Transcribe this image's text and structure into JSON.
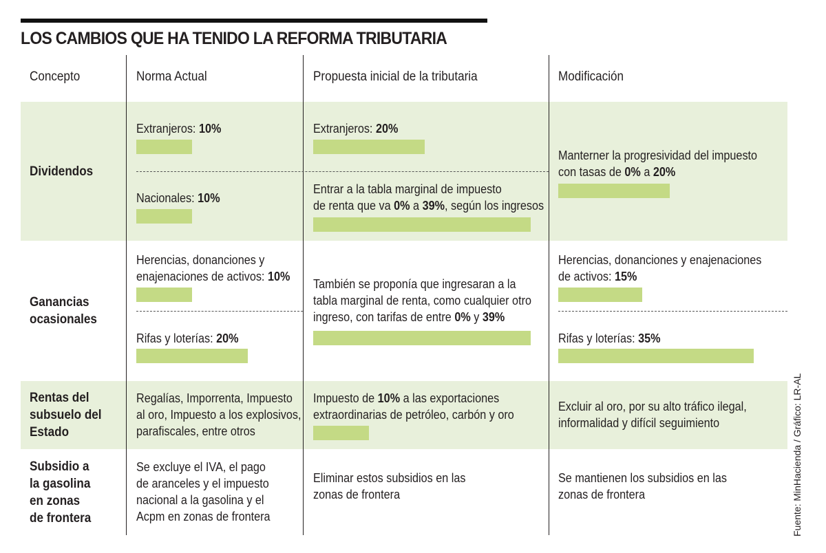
{
  "title": "LOS CAMBIOS QUE HA TENIDO LA REFORMA TRIBUTARIA",
  "headers": [
    "Concepto",
    "Norma Actual",
    "Propuesta inicial de la tributaria",
    "Modificación"
  ],
  "bar_color": "#c4da85",
  "band_color": "#e8f0db",
  "rows": [
    {
      "concept": "Dividendos",
      "actual": [
        {
          "label": "Extranjeros:",
          "value": "10%",
          "rate": 10
        },
        {
          "label": "Nacionales:",
          "value": "10%",
          "rate": 10
        }
      ],
      "proposal": [
        {
          "label": "Extranjeros:",
          "value": "20%",
          "rate": 20
        },
        {
          "line1": "Entrar a la tabla marginal de impuesto",
          "pre": "de renta que va",
          "v1": "0%",
          "mid": "a",
          "v2": "39%",
          "post": ", según los ingresos",
          "rate": 39
        }
      ],
      "modification": {
        "line1": "Manterner la progresividad del impuesto",
        "pre": "con tasas de",
        "v1": "0%",
        "mid": "a",
        "v2": "20%",
        "rate": 20
      }
    },
    {
      "concept_lines": [
        "Ganancias",
        "ocasionales"
      ],
      "actual": [
        {
          "line1": "Herencias, donanciones y",
          "label": "enajenaciones de activos:",
          "value": "10%",
          "rate": 10
        },
        {
          "label": "Rifas y loterías:",
          "value": "20%",
          "rate": 20
        }
      ],
      "proposal": {
        "line1": "También se proponía que ingresaran a la",
        "line2": "tabla marginal de renta, como cualquier otro",
        "pre": "ingreso, con tarifas de entre",
        "v1": "0%",
        "mid": "y",
        "v2": "39%",
        "rate": 39
      },
      "modification": [
        {
          "line1": "Herencias, donanciones y enajenaciones",
          "label": "de activos:",
          "value": "15%",
          "rate": 15
        },
        {
          "label": "Rifas y loterías:",
          "value": "35%",
          "rate": 35
        }
      ]
    },
    {
      "concept_lines": [
        "Rentas del",
        "subsuelo del",
        "Estado"
      ],
      "actual_lines": [
        "Regalías, Imporrenta, Impuesto",
        "al oro, Impuesto a los explosivos,",
        "parafiscales, entre otros"
      ],
      "proposal": {
        "pre": "Impuesto de",
        "value": "10%",
        "post": "a las exportaciones",
        "line2": "extraordinarias de petróleo, carbón y oro",
        "rate": 10
      },
      "modification_lines": [
        "Excluir al oro, por su alto tráfico ilegal,",
        "informalidad y difícil seguimiento"
      ]
    },
    {
      "concept_lines": [
        "Subsidio a",
        "la gasolina",
        "en zonas",
        "de frontera"
      ],
      "actual_lines": [
        "Se excluye el IVA, el pago",
        "de aranceles y el impuesto",
        "nacional a la gasolina y el",
        "Acpm en zonas de frontera"
      ],
      "proposal_lines": [
        "Eliminar estos subsidios en las",
        "zonas de frontera"
      ],
      "modification_lines": [
        "Se mantienen los subsidios en las",
        "zonas de frontera"
      ]
    }
  ],
  "source": "Fuente: MinHacienda / Gráfico: LR-AL"
}
